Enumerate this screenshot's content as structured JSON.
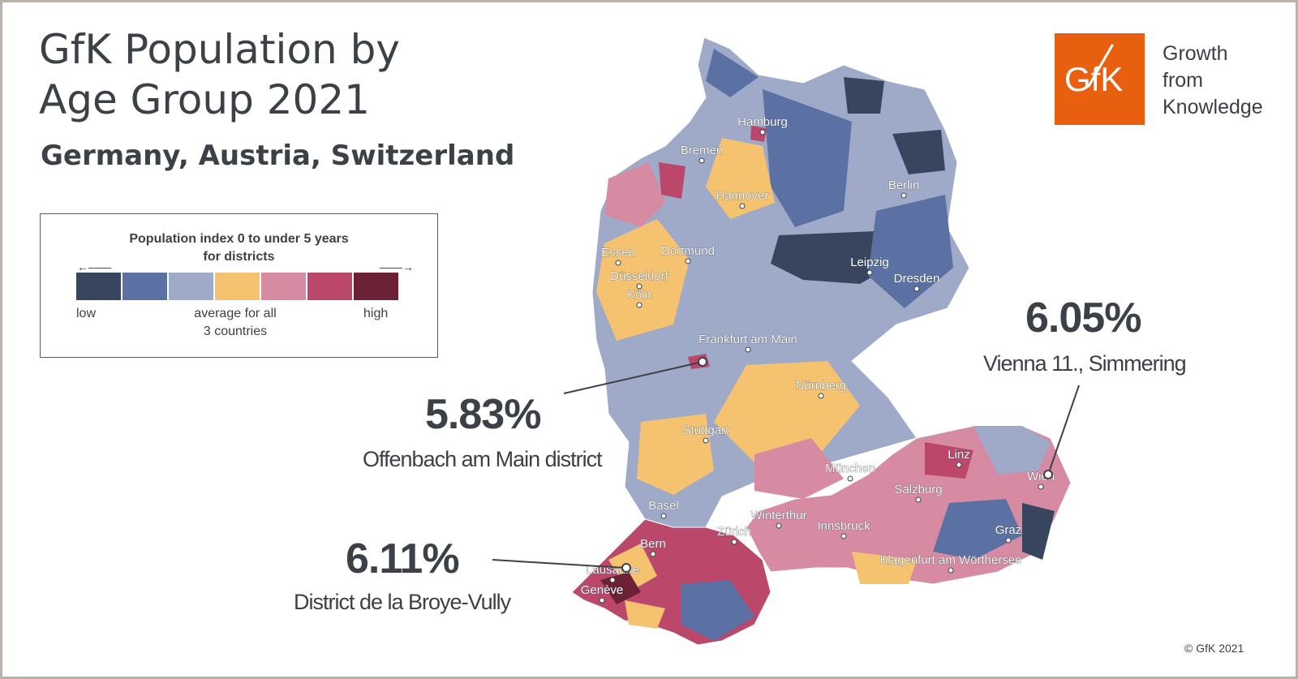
{
  "title_line1": "GfK Population by",
  "title_line2": "Age Group 2021",
  "subtitle": "Germany, Austria, Switzerland",
  "legend": {
    "title_line1": "Population index 0 to under 5 years",
    "title_line2": "for districts",
    "low": "low",
    "average_line1": "average for all",
    "average_line2": "3 countries",
    "high": "high",
    "colors": [
      "#38455f",
      "#5b70a3",
      "#9eaac8",
      "#f5c26f",
      "#d78ba2",
      "#bb486a",
      "#6c2136"
    ]
  },
  "logo": {
    "text": "GfK",
    "tagline1": "Growth",
    "tagline2": "from",
    "tagline3": "Knowledge",
    "color": "#e8600f"
  },
  "copyright": "© GfK 2021",
  "cities": [
    "Hamburg",
    "Bremen",
    "Hannover",
    "Berlin",
    "Essen",
    "Dortmund",
    "Düsseldorf",
    "Köln",
    "Leipzig",
    "Dresden",
    "Frankfurt am Main",
    "Nürnberg",
    "Stuttgart",
    "München",
    "Linz",
    "Wien",
    "Salzburg",
    "Basel",
    "Winterthur",
    "Zürich",
    "Innsbruck",
    "Graz",
    "Bern",
    "Klagenfurt am Wörthersee",
    "Lausanne",
    "Genève"
  ],
  "callouts": [
    {
      "value": "5.83%",
      "name": "Offenbach am Main district"
    },
    {
      "value": "6.05%",
      "name": "Vienna 11., Simmering"
    },
    {
      "value": "6.11%",
      "name": "District de la Broye-Vully"
    }
  ]
}
